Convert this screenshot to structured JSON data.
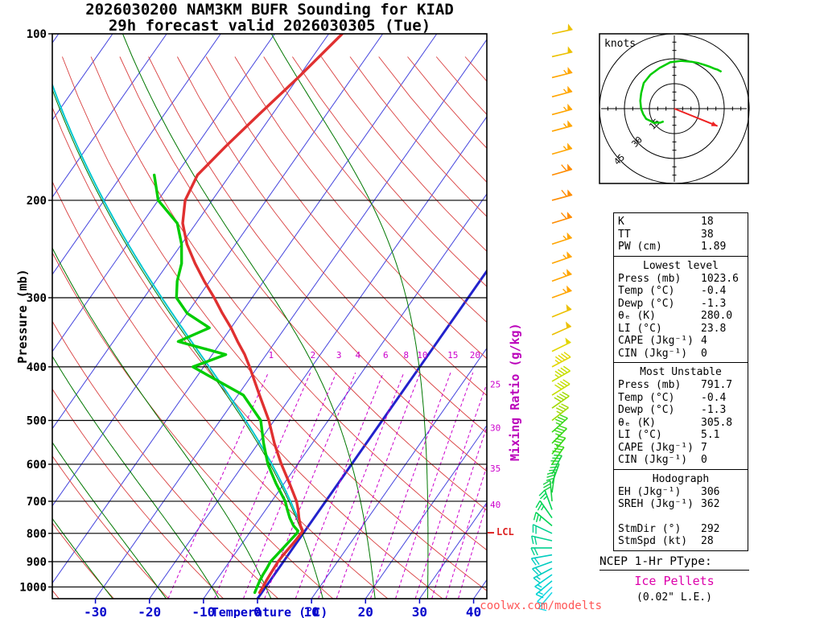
{
  "title": {
    "line1": "2026030200 NAM3KM BUFR Sounding for KIAD",
    "line2": "29h forecast valid 2026030305 (Tue)"
  },
  "axes": {
    "pressure_label": "Pressure (mb)",
    "temperature_label": "Temperature (°C)",
    "mixing_ratio_label": "Mixing Ratio (g/kg)",
    "lcl_label": "LCL"
  },
  "watermark": "coolwx.com/modelts",
  "colors": {
    "isotherm": "#4444dd",
    "isotherm_highlight": "#2222cc",
    "dry_adiabat": "#d94040",
    "moist_adiabat": "#007700",
    "mixing_ratio": "#cc00cc",
    "temp_profile": "#e03030",
    "dewp_profile": "#00cc00",
    "parcel_path": "#00c8d0",
    "pressure_line": "#000000",
    "temp_axis": "#0000cc",
    "hodo_trace": "#00cc00",
    "storm_arrow": "#ee2222",
    "lcl": "#dd2222"
  },
  "hodograph": {
    "unit_label": "knots",
    "rings_kt": [
      15,
      30,
      45
    ],
    "storm_motion": {
      "dir_deg": 292,
      "spd_kt": 28
    }
  },
  "panel": {
    "indices": [
      [
        "K",
        "18"
      ],
      [
        "TT",
        "38"
      ],
      [
        "PW (cm)",
        "1.89"
      ]
    ],
    "sections": [
      {
        "header": "Lowest level",
        "rows": [
          [
            "Press (mb)",
            "1023.6"
          ],
          [
            "Temp (°C)",
            "-0.4"
          ],
          [
            "Dewp (°C)",
            "-1.3"
          ],
          [
            "θₑ (K)",
            "280.0"
          ],
          [
            "LI (°C)",
            "23.8"
          ],
          [
            "CAPE (Jkg⁻¹)",
            "4"
          ],
          [
            "CIN (Jkg⁻¹)",
            "0"
          ]
        ]
      },
      {
        "header": "Most Unstable",
        "rows": [
          [
            "Press (mb)",
            "791.7"
          ],
          [
            "Temp (°C)",
            "-0.4"
          ],
          [
            "Dewp (°C)",
            "-1.3"
          ],
          [
            "θₑ (K)",
            "305.8"
          ],
          [
            "LI (°C)",
            "5.1"
          ],
          [
            "CAPE (Jkg⁻¹)",
            "7"
          ],
          [
            "CIN (Jkg⁻¹)",
            "0"
          ]
        ]
      },
      {
        "header": "Hodograph",
        "rows": [
          [
            "EH (Jkg⁻¹)",
            "306"
          ],
          [
            "SREH (Jkg⁻¹)",
            "362"
          ],
          null,
          [
            "StmDir (°)",
            "292"
          ],
          [
            "StmSpd (kt)",
            "28"
          ]
        ]
      }
    ]
  },
  "ptype": {
    "heading": "NCEP 1-Hr PType:",
    "value": "Ice Pellets",
    "extra": "(0.02\" L.E.)"
  },
  "chart_data": {
    "type": "skewt",
    "pressure_ticks_mb": [
      100,
      200,
      300,
      400,
      500,
      600,
      700,
      800,
      900,
      1000
    ],
    "pressure_range_mb": [
      100,
      1050
    ],
    "temp_ticks_c": [
      -30,
      -20,
      -10,
      0,
      10,
      20,
      30,
      40
    ],
    "isotherms_c": {
      "min": -120,
      "max": 40,
      "step": 10,
      "highlighted": 0
    },
    "dry_adiabats_theta_c": {
      "min": -40,
      "max": 200,
      "step": 10
    },
    "moist_adiabats_thetaw_c": [
      -30,
      -20,
      -10,
      0,
      10,
      20,
      30
    ],
    "mixing_ratio_lines_gkg": [
      1,
      2,
      3,
      4,
      6,
      8,
      10,
      15,
      20,
      25,
      30,
      35,
      40
    ],
    "lcl_mb": 798,
    "parcel_path": {
      "start_mb": 791.7,
      "start_temp_c": -0.4
    },
    "profile": {
      "pressure_mb": [
        1023.6,
        1000,
        975,
        950,
        925,
        900,
        875,
        850,
        825,
        800,
        791.7,
        775,
        750,
        725,
        700,
        650,
        600,
        550,
        500,
        450,
        400,
        380,
        360,
        340,
        320,
        300,
        280,
        260,
        240,
        220,
        200,
        180,
        160,
        140,
        120,
        100
      ],
      "temp_c": [
        -0.4,
        -0.5,
        -0.7,
        -0.8,
        -0.9,
        -1.0,
        -0.9,
        -0.7,
        -0.5,
        -0.4,
        -0.4,
        -1.5,
        -2.8,
        -4.0,
        -5.4,
        -9.0,
        -13.0,
        -17.0,
        -21.0,
        -26.0,
        -31.5,
        -34.0,
        -37.0,
        -40.0,
        -43.5,
        -47.0,
        -51.0,
        -55.0,
        -59.0,
        -62.5,
        -65.0,
        -66.0,
        -64.5,
        -62.5,
        -60.0,
        -57.5
      ],
      "dewp_c": [
        -1.3,
        -1.6,
        -1.9,
        -2.1,
        -2.2,
        -2.4,
        -2.1,
        -1.8,
        -1.5,
        -1.2,
        -1.3,
        -2.8,
        -4.5,
        -6.0,
        -7.5,
        -11.5,
        -15.5,
        -19.0,
        -22.5,
        -29.0,
        -42.0,
        -37.5,
        -48.0,
        -44.0,
        -50.0,
        -54.0,
        -56.0,
        -57.5,
        -60.0,
        -63.5,
        -70.0,
        -74.0,
        null,
        null,
        null,
        null
      ]
    },
    "winds_p_dir_spd": [
      [
        1023,
        40,
        10
      ],
      [
        1000,
        45,
        12
      ],
      [
        975,
        50,
        13
      ],
      [
        950,
        55,
        15
      ],
      [
        925,
        62,
        16
      ],
      [
        900,
        70,
        18
      ],
      [
        875,
        80,
        19
      ],
      [
        850,
        90,
        20
      ],
      [
        825,
        103,
        21
      ],
      [
        800,
        115,
        22
      ],
      [
        775,
        130,
        24
      ],
      [
        750,
        145,
        25
      ],
      [
        725,
        160,
        26
      ],
      [
        700,
        175,
        28
      ],
      [
        675,
        188,
        29
      ],
      [
        650,
        200,
        30
      ],
      [
        625,
        208,
        31
      ],
      [
        600,
        215,
        32
      ],
      [
        575,
        220,
        33
      ],
      [
        550,
        225,
        34
      ],
      [
        525,
        228,
        35
      ],
      [
        500,
        232,
        36
      ],
      [
        475,
        235,
        38
      ],
      [
        450,
        238,
        40
      ],
      [
        425,
        240,
        43
      ],
      [
        400,
        242,
        45
      ],
      [
        375,
        244,
        48
      ],
      [
        350,
        246,
        50
      ],
      [
        325,
        248,
        52
      ],
      [
        300,
        250,
        55
      ],
      [
        280,
        250,
        55
      ],
      [
        260,
        251,
        56
      ],
      [
        240,
        252,
        57
      ],
      [
        220,
        253,
        58
      ],
      [
        200,
        255,
        60
      ],
      [
        180,
        254,
        59
      ],
      [
        165,
        254,
        57
      ],
      [
        150,
        255,
        55
      ],
      [
        140,
        255,
        56
      ],
      [
        130,
        255,
        56
      ],
      [
        120,
        256,
        54
      ],
      [
        110,
        257,
        52
      ],
      [
        100,
        258,
        50
      ]
    ],
    "hodograph_trace_min_mb": 500
  }
}
